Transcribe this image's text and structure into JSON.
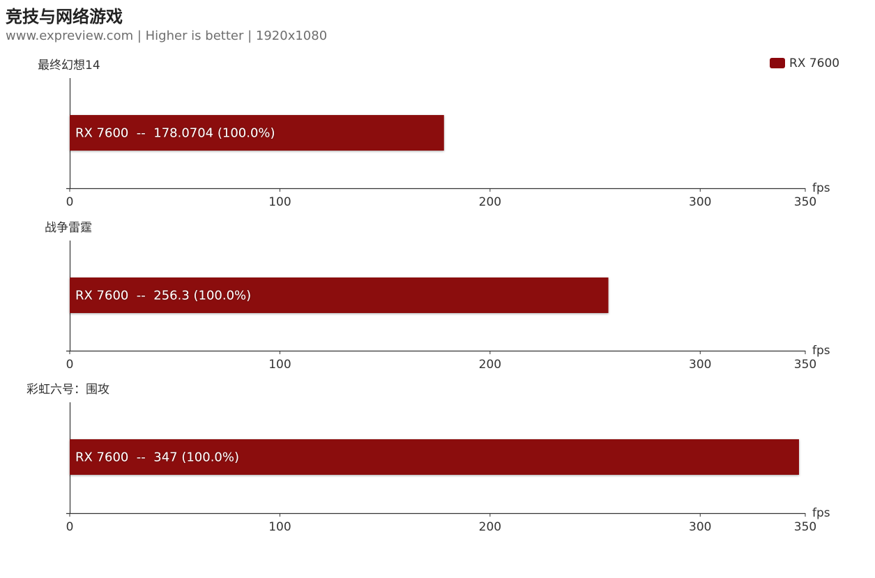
{
  "header": {
    "title": "竞技与网络游戏",
    "subtitle": "www.expreview.com | Higher is better | 1920x1080"
  },
  "legend": {
    "label": "RX 7600",
    "color": "#8b070c"
  },
  "chart_data": {
    "type": "bar",
    "orientation": "horizontal",
    "legend_position": "top-right",
    "xlim": [
      0,
      350
    ],
    "xticks": [
      0,
      100,
      200,
      300,
      350
    ],
    "xunit": "fps",
    "panels": [
      {
        "title": "最终幻想14",
        "series": [
          {
            "name": "RX 7600",
            "value": 178.0704,
            "label": "RX 7600  --  178.0704 (100.0%)"
          }
        ]
      },
      {
        "title": "战争雷霆",
        "series": [
          {
            "name": "RX 7600",
            "value": 256.3,
            "label": "RX 7600  --  256.3 (100.0%)"
          }
        ]
      },
      {
        "title": "彩虹六号：围攻",
        "series": [
          {
            "name": "RX 7600",
            "value": 347,
            "label": "RX 7600  --  347 (100.0%)"
          }
        ]
      }
    ]
  }
}
